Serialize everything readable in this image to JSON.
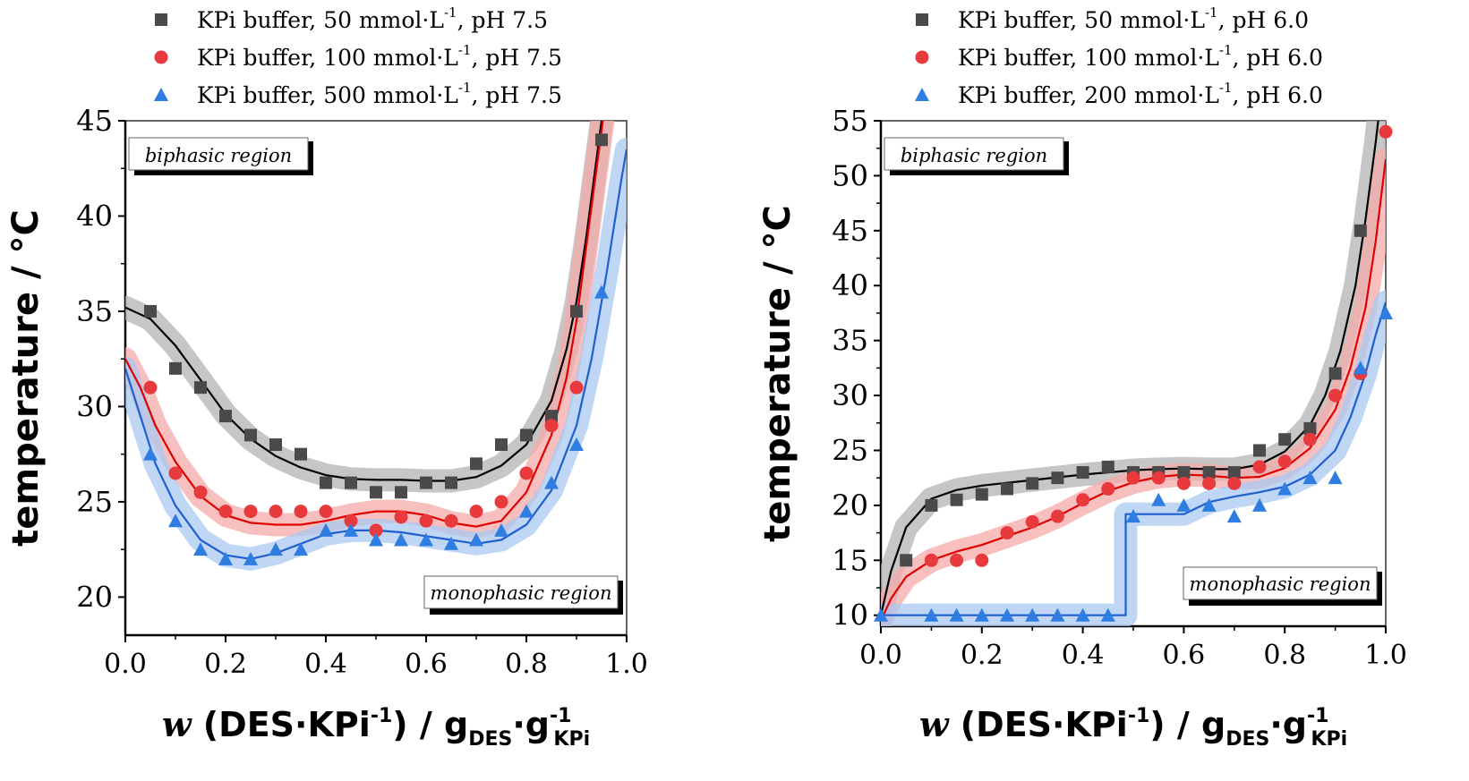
{
  "chart_data": [
    {
      "type": "scatter",
      "ylabel": "temperature / °C",
      "xlabel": {
        "w": "w",
        "paren_open": " (DES·KPi",
        "paren_sup": "-1",
        "paren_close": ")",
        "slash": " / g",
        "sub1": "DES",
        "dot": "·g",
        "sup2": "-1",
        "sub2": "KPi"
      },
      "xlim": [
        0.0,
        1.0
      ],
      "ylim": [
        18,
        45
      ],
      "xticks": [
        "0.0",
        "0.2",
        "0.4",
        "0.6",
        "0.8",
        "1.0"
      ],
      "yticks": [
        "20",
        "25",
        "30",
        "35",
        "40",
        "45"
      ],
      "grid": false,
      "legend_position": "top, above plot",
      "region_labels": {
        "top": "biphasic region",
        "bottom": "monophasic region"
      },
      "series": [
        {
          "name": "KPi buffer, 50 mmol·L",
          "name_sup": "-1",
          "name_tail": ", pH 7.5",
          "marker": "square",
          "color": "#4a4a4a",
          "line_color": "#000000",
          "band_color": "#b3b3b3",
          "x": [
            0.05,
            0.1,
            0.15,
            0.2,
            0.25,
            0.3,
            0.35,
            0.4,
            0.45,
            0.5,
            0.55,
            0.6,
            0.65,
            0.7,
            0.75,
            0.8,
            0.85,
            0.9,
            0.95
          ],
          "y": [
            35,
            32,
            31,
            29.5,
            28.5,
            28,
            27.5,
            26,
            26,
            25.5,
            25.5,
            26,
            26,
            27,
            28,
            28.5,
            29.5,
            35,
            44
          ],
          "fit": [
            [
              0.0,
              35.2
            ],
            [
              0.05,
              34.6
            ],
            [
              0.1,
              33.2
            ],
            [
              0.15,
              31.4
            ],
            [
              0.2,
              29.6
            ],
            [
              0.25,
              28.3
            ],
            [
              0.3,
              27.4
            ],
            [
              0.35,
              26.8
            ],
            [
              0.4,
              26.4
            ],
            [
              0.45,
              26.2
            ],
            [
              0.5,
              26.15
            ],
            [
              0.55,
              26.15
            ],
            [
              0.6,
              26.1
            ],
            [
              0.65,
              26.1
            ],
            [
              0.7,
              26.3
            ],
            [
              0.75,
              26.9
            ],
            [
              0.8,
              28.0
            ],
            [
              0.85,
              30.3
            ],
            [
              0.88,
              33.0
            ],
            [
              0.9,
              35.5
            ],
            [
              0.92,
              39.0
            ],
            [
              0.94,
              43.0
            ],
            [
              0.955,
              46.0
            ]
          ]
        },
        {
          "name": "KPi buffer, 100 mmol·L",
          "name_sup": "-1",
          "name_tail": ", pH 7.5",
          "marker": "circle",
          "color": "#e8393d",
          "line_color": "#e00000",
          "band_color": "#f5a9a9",
          "x": [
            0.05,
            0.1,
            0.15,
            0.2,
            0.25,
            0.3,
            0.35,
            0.4,
            0.45,
            0.5,
            0.55,
            0.6,
            0.65,
            0.7,
            0.75,
            0.8,
            0.85,
            0.9
          ],
          "y": [
            31,
            26.5,
            25.5,
            24.5,
            24.5,
            24.5,
            24.5,
            24.5,
            24,
            23.5,
            24.2,
            24,
            24,
            24.5,
            25,
            26.5,
            29,
            31
          ],
          "fit": [
            [
              0.0,
              32.5
            ],
            [
              0.03,
              31.0
            ],
            [
              0.06,
              29.0
            ],
            [
              0.1,
              27.1
            ],
            [
              0.15,
              25.3
            ],
            [
              0.2,
              24.3
            ],
            [
              0.25,
              23.9
            ],
            [
              0.3,
              23.8
            ],
            [
              0.35,
              23.8
            ],
            [
              0.4,
              24.0
            ],
            [
              0.45,
              24.3
            ],
            [
              0.5,
              24.5
            ],
            [
              0.55,
              24.5
            ],
            [
              0.6,
              24.3
            ],
            [
              0.65,
              23.9
            ],
            [
              0.7,
              23.7
            ],
            [
              0.75,
              24.0
            ],
            [
              0.8,
              25.5
            ],
            [
              0.85,
              28.5
            ],
            [
              0.88,
              31.5
            ],
            [
              0.9,
              34.5
            ],
            [
              0.92,
              38.5
            ],
            [
              0.94,
              42.5
            ],
            [
              0.96,
              46.5
            ]
          ]
        },
        {
          "name": "KPi buffer, 500 mmol·L",
          "name_sup": "-1",
          "name_tail": ", pH 7.5",
          "marker": "triangle",
          "color": "#2f7de1",
          "line_color": "#1f5fd0",
          "band_color": "#a9c8f0",
          "x": [
            0.05,
            0.1,
            0.15,
            0.2,
            0.25,
            0.3,
            0.35,
            0.4,
            0.45,
            0.5,
            0.55,
            0.6,
            0.65,
            0.7,
            0.75,
            0.8,
            0.85,
            0.9,
            0.95
          ],
          "y": [
            27.5,
            24,
            22.5,
            22,
            22,
            22.5,
            22.5,
            23.5,
            23.5,
            23,
            23,
            23,
            22.8,
            23,
            23.5,
            24.5,
            26,
            28,
            36
          ],
          "fit": [
            [
              0.0,
              32.0
            ],
            [
              0.03,
              29.5
            ],
            [
              0.06,
              27.0
            ],
            [
              0.1,
              24.8
            ],
            [
              0.15,
              23.0
            ],
            [
              0.2,
              22.2
            ],
            [
              0.25,
              22.0
            ],
            [
              0.3,
              22.3
            ],
            [
              0.35,
              22.8
            ],
            [
              0.4,
              23.3
            ],
            [
              0.45,
              23.5
            ],
            [
              0.5,
              23.5
            ],
            [
              0.55,
              23.4
            ],
            [
              0.6,
              23.2
            ],
            [
              0.65,
              23.0
            ],
            [
              0.7,
              22.8
            ],
            [
              0.75,
              23.0
            ],
            [
              0.8,
              23.8
            ],
            [
              0.85,
              25.6
            ],
            [
              0.9,
              29.0
            ],
            [
              0.93,
              32.5
            ],
            [
              0.96,
              37.0
            ],
            [
              0.99,
              42.0
            ],
            [
              1.0,
              43.5
            ]
          ]
        }
      ]
    },
    {
      "type": "scatter",
      "ylabel": "temperature / °C",
      "xlabel": {
        "w": "w",
        "paren_open": " (DES·KPi",
        "paren_sup": "-1",
        "paren_close": ")",
        "slash": " / g",
        "sub1": "DES",
        "dot": "·g",
        "sup2": "-1",
        "sub2": "KPi"
      },
      "xlim": [
        0.0,
        1.0
      ],
      "ylim": [
        9,
        55
      ],
      "xticks": [
        "0.0",
        "0.2",
        "0.4",
        "0.6",
        "0.8",
        "1.0"
      ],
      "yticks": [
        "10",
        "15",
        "20",
        "25",
        "30",
        "35",
        "40",
        "45",
        "50",
        "55"
      ],
      "grid": false,
      "legend_position": "top, above plot",
      "region_labels": {
        "top": "biphasic region",
        "bottom": "monophasic region"
      },
      "series": [
        {
          "name": "KPi buffer, 50 mmol·L",
          "name_sup": "-1",
          "name_tail": ", pH 6.0",
          "marker": "square",
          "color": "#4a4a4a",
          "line_color": "#000000",
          "band_color": "#b3b3b3",
          "x": [
            0.05,
            0.1,
            0.15,
            0.2,
            0.25,
            0.3,
            0.35,
            0.4,
            0.45,
            0.5,
            0.55,
            0.6,
            0.65,
            0.7,
            0.75,
            0.8,
            0.85,
            0.9,
            0.95
          ],
          "y": [
            15,
            20,
            20.5,
            21,
            21.5,
            22,
            22.5,
            23,
            23.5,
            23,
            23,
            23,
            23,
            23,
            25,
            26,
            27,
            32,
            45
          ],
          "fit": [
            [
              0.0,
              10.0
            ],
            [
              0.02,
              14.0
            ],
            [
              0.05,
              18.0
            ],
            [
              0.1,
              20.6
            ],
            [
              0.15,
              21.4
            ],
            [
              0.2,
              21.8
            ],
            [
              0.3,
              22.3
            ],
            [
              0.4,
              22.8
            ],
            [
              0.5,
              23.2
            ],
            [
              0.55,
              23.3
            ],
            [
              0.6,
              23.35
            ],
            [
              0.65,
              23.3
            ],
            [
              0.7,
              23.3
            ],
            [
              0.75,
              23.7
            ],
            [
              0.8,
              24.9
            ],
            [
              0.85,
              27.3
            ],
            [
              0.88,
              30.0
            ],
            [
              0.91,
              34.0
            ],
            [
              0.94,
              40.0
            ],
            [
              0.96,
              46.0
            ],
            [
              0.98,
              53.0
            ],
            [
              0.99,
              57.0
            ]
          ]
        },
        {
          "name": "KPi buffer, 100 mmol·L",
          "name_sup": "-1",
          "name_tail": ", pH 6.0",
          "marker": "circle",
          "color": "#e8393d",
          "line_color": "#e00000",
          "band_color": "#f5a9a9",
          "x": [
            0.1,
            0.15,
            0.2,
            0.25,
            0.3,
            0.35,
            0.4,
            0.45,
            0.5,
            0.55,
            0.6,
            0.65,
            0.7,
            0.75,
            0.8,
            0.85,
            0.9,
            0.95,
            1.0
          ],
          "y": [
            15,
            15,
            15,
            17.5,
            18.5,
            19,
            20.5,
            21.5,
            22.5,
            22.5,
            22,
            22,
            22,
            23.5,
            24,
            26,
            30,
            32,
            54
          ],
          "fit": [
            [
              0.0,
              9.5
            ],
            [
              0.02,
              11.5
            ],
            [
              0.05,
              13.5
            ],
            [
              0.1,
              15.0
            ],
            [
              0.15,
              15.8
            ],
            [
              0.2,
              16.4
            ],
            [
              0.25,
              17.2
            ],
            [
              0.3,
              18.0
            ],
            [
              0.35,
              19.0
            ],
            [
              0.4,
              20.2
            ],
            [
              0.45,
              21.3
            ],
            [
              0.5,
              22.1
            ],
            [
              0.55,
              22.6
            ],
            [
              0.6,
              22.8
            ],
            [
              0.65,
              22.7
            ],
            [
              0.7,
              22.5
            ],
            [
              0.75,
              22.6
            ],
            [
              0.8,
              23.4
            ],
            [
              0.85,
              25.2
            ],
            [
              0.9,
              28.7
            ],
            [
              0.93,
              32.5
            ],
            [
              0.96,
              38.0
            ],
            [
              0.98,
              44.0
            ],
            [
              1.0,
              51.5
            ]
          ]
        },
        {
          "name": "KPi buffer, 200 mmol·L",
          "name_sup": "-1",
          "name_tail": ", pH 6.0",
          "marker": "triangle",
          "color": "#2f7de1",
          "line_color": "#1f5fd0",
          "band_color": "#a9c8f0",
          "x": [
            0.0,
            0.1,
            0.15,
            0.2,
            0.25,
            0.3,
            0.35,
            0.4,
            0.45,
            0.5,
            0.55,
            0.6,
            0.65,
            0.7,
            0.75,
            0.8,
            0.85,
            0.9,
            0.95,
            1.0
          ],
          "y": [
            10,
            10,
            10,
            10,
            10,
            10,
            10,
            10,
            10,
            19,
            20.5,
            20,
            20,
            19,
            20,
            21.5,
            22.5,
            22.5,
            32.5,
            37.5
          ],
          "fit": [
            [
              0.0,
              10.0
            ],
            [
              0.485,
              10.0
            ],
            [
              0.485,
              19.2
            ],
            [
              0.6,
              19.2
            ],
            [
              0.65,
              20.3
            ],
            [
              0.7,
              20.8
            ],
            [
              0.75,
              21.2
            ],
            [
              0.8,
              21.7
            ],
            [
              0.85,
              22.8
            ],
            [
              0.9,
              25.0
            ],
            [
              0.93,
              28.0
            ],
            [
              0.96,
              32.0
            ],
            [
              0.98,
              35.5
            ],
            [
              1.0,
              38.5
            ]
          ]
        }
      ]
    }
  ]
}
